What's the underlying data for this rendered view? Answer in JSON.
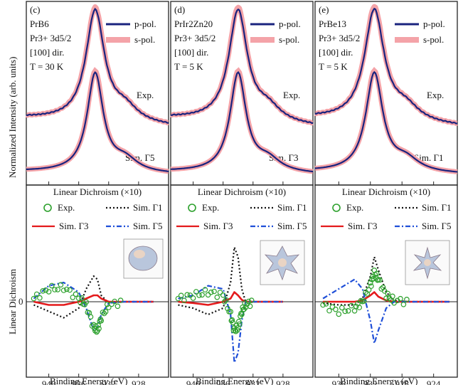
{
  "figure": {
    "y_axis_top": "Normalized Intensity (arb. units)",
    "y_axis_bottom": "Linear Dichroism",
    "x_axis": "Binding Energy (eV)"
  },
  "panels": [
    {
      "tag": "(c)",
      "compound": "PrB6",
      "ion": "Pr3+ 3d5/2",
      "direction": "[100] dir.",
      "temperature": "T = 30 K",
      "sim_label": "Sim. Γ5",
      "exp_label": "Exp.",
      "xticks": [
        940,
        936,
        932,
        928
      ],
      "xlim": [
        943,
        924
      ]
    },
    {
      "tag": "(d)",
      "compound": "PrIr2Zn20",
      "ion": "Pr3+ 3d5/2",
      "direction": "[100] dir.",
      "temperature": "T = 5 K",
      "sim_label": "Sim. Γ3",
      "exp_label": "Exp.",
      "xticks": [
        940,
        936,
        932,
        928
      ],
      "xlim": [
        943,
        924
      ]
    },
    {
      "tag": "(e)",
      "compound": "PrBe13",
      "ion": "Pr3+ 3d5/2",
      "direction": "[100] dir.",
      "temperature": "T = 5 K",
      "sim_label": "Sim. Γ1",
      "exp_label": "Exp.",
      "xticks": [
        936,
        932,
        928,
        924
      ],
      "xlim": [
        939,
        921
      ]
    }
  ],
  "legend_top": [
    {
      "name": "p-pol.",
      "color": "#1a237e"
    },
    {
      "name": "s-pol.",
      "color": "#f4a3a8"
    }
  ],
  "legend_bottom": {
    "title": "Linear Dichroism (×10)",
    "items": [
      {
        "name": "Exp.",
        "color": "#2ca02c",
        "style": "circle"
      },
      {
        "name": "Sim. Γ1",
        "color": "#111111",
        "style": "dotted"
      },
      {
        "name": "Sim. Γ3",
        "color": "#e41a1c",
        "style": "solid"
      },
      {
        "name": "Sim. Γ5",
        "color": "#1f4fd8",
        "style": "dashdot"
      }
    ]
  },
  "zero_label": "0",
  "chart_data": [
    {
      "type": "line",
      "panel": "(c) PrB6",
      "xlabel": "Binding Energy (eV)",
      "series": [
        {
          "name": "p-pol. Exp.",
          "peak_x": 933.8,
          "peak_y": 1.0
        },
        {
          "name": "s-pol. Exp.",
          "peak_x": 933.8,
          "peak_y": 0.98
        },
        {
          "name": "p-pol. Sim. Γ5",
          "peak_x": 933.8,
          "peak_y": 1.0
        },
        {
          "name": "s-pol. Sim. Γ5",
          "peak_x": 933.8,
          "peak_y": 1.0
        }
      ],
      "dichroism": {
        "x": [
          942,
          940,
          938,
          936,
          935,
          934,
          933.5,
          933,
          932,
          930,
          928,
          926
        ],
        "exp": [
          0.05,
          0.2,
          0.22,
          0.05,
          -0.05,
          -0.4,
          -0.45,
          -0.25,
          -0.05,
          0.0,
          0.0,
          0.0
        ],
        "sim_g1": [
          -0.05,
          -0.15,
          -0.25,
          -0.1,
          0.2,
          0.4,
          0.35,
          0.1,
          -0.02,
          0.0,
          0.0,
          0.0
        ],
        "sim_g3": [
          0.0,
          -0.05,
          -0.05,
          0.0,
          0.05,
          0.1,
          0.1,
          0.05,
          0.0,
          0.0,
          0.0,
          0.0
        ],
        "sim_g5": [
          0.05,
          0.25,
          0.3,
          0.15,
          -0.1,
          -0.45,
          -0.4,
          -0.2,
          -0.02,
          0.0,
          0.0,
          0.0
        ]
      }
    },
    {
      "type": "line",
      "panel": "(d) PrIr2Zn20",
      "xlabel": "Binding Energy (eV)",
      "series": [
        {
          "name": "p-pol. Exp.",
          "peak_x": 934.0,
          "peak_y": 1.0
        },
        {
          "name": "s-pol. Exp.",
          "peak_x": 934.0,
          "peak_y": 0.98
        },
        {
          "name": "p-pol. Sim. Γ3",
          "peak_x": 934.0,
          "peak_y": 1.0
        },
        {
          "name": "s-pol. Sim. Γ3",
          "peak_x": 934.0,
          "peak_y": 1.0
        }
      ],
      "dichroism": {
        "x": [
          942,
          940,
          938,
          936,
          935,
          934.5,
          934,
          933.5,
          933,
          932,
          930,
          928
        ],
        "exp": [
          0.05,
          0.1,
          0.15,
          0.1,
          -0.2,
          -0.45,
          -0.4,
          -0.15,
          -0.05,
          0.0,
          0.0,
          0.0
        ],
        "sim_g1": [
          -0.05,
          -0.1,
          -0.2,
          -0.1,
          0.3,
          0.85,
          0.7,
          0.2,
          0.0,
          0.0,
          0.0,
          0.0
        ],
        "sim_g3": [
          0.0,
          -0.02,
          -0.05,
          0.0,
          0.05,
          0.15,
          0.1,
          0.03,
          0.0,
          0.0,
          0.0,
          0.0
        ],
        "sim_g5": [
          0.05,
          0.1,
          0.25,
          0.2,
          -0.2,
          -0.95,
          -0.8,
          -0.3,
          0.0,
          0.0,
          0.0,
          0.0
        ]
      }
    },
    {
      "type": "line",
      "panel": "(e) PrBe13",
      "xlabel": "Binding Energy (eV)",
      "series": [
        {
          "name": "p-pol. Exp.",
          "peak_x": 931.5,
          "peak_y": 1.0
        },
        {
          "name": "s-pol. Exp.",
          "peak_x": 931.5,
          "peak_y": 0.98
        },
        {
          "name": "p-pol. Sim. Γ1",
          "peak_x": 931.5,
          "peak_y": 1.0
        },
        {
          "name": "s-pol. Sim. Γ1",
          "peak_x": 931.5,
          "peak_y": 1.0
        }
      ],
      "dichroism": {
        "x": [
          938,
          936,
          934,
          933,
          932,
          931.5,
          931,
          930,
          929,
          927,
          925,
          922
        ],
        "exp": [
          -0.05,
          -0.15,
          -0.1,
          0.0,
          0.25,
          0.45,
          0.35,
          0.1,
          0.02,
          0.0,
          0.0,
          0.0
        ],
        "sim_g1": [
          -0.02,
          -0.05,
          -0.05,
          0.05,
          0.4,
          0.7,
          0.5,
          0.15,
          0.02,
          0.0,
          0.0,
          0.0
        ],
        "sim_g3": [
          0.0,
          0.0,
          0.0,
          0.02,
          0.1,
          0.15,
          0.08,
          0.02,
          0.0,
          0.0,
          0.0,
          0.0
        ],
        "sim_g5": [
          0.05,
          0.2,
          0.35,
          0.2,
          -0.3,
          -0.65,
          -0.45,
          -0.1,
          0.0,
          0.0,
          0.0,
          0.0
        ]
      }
    }
  ]
}
